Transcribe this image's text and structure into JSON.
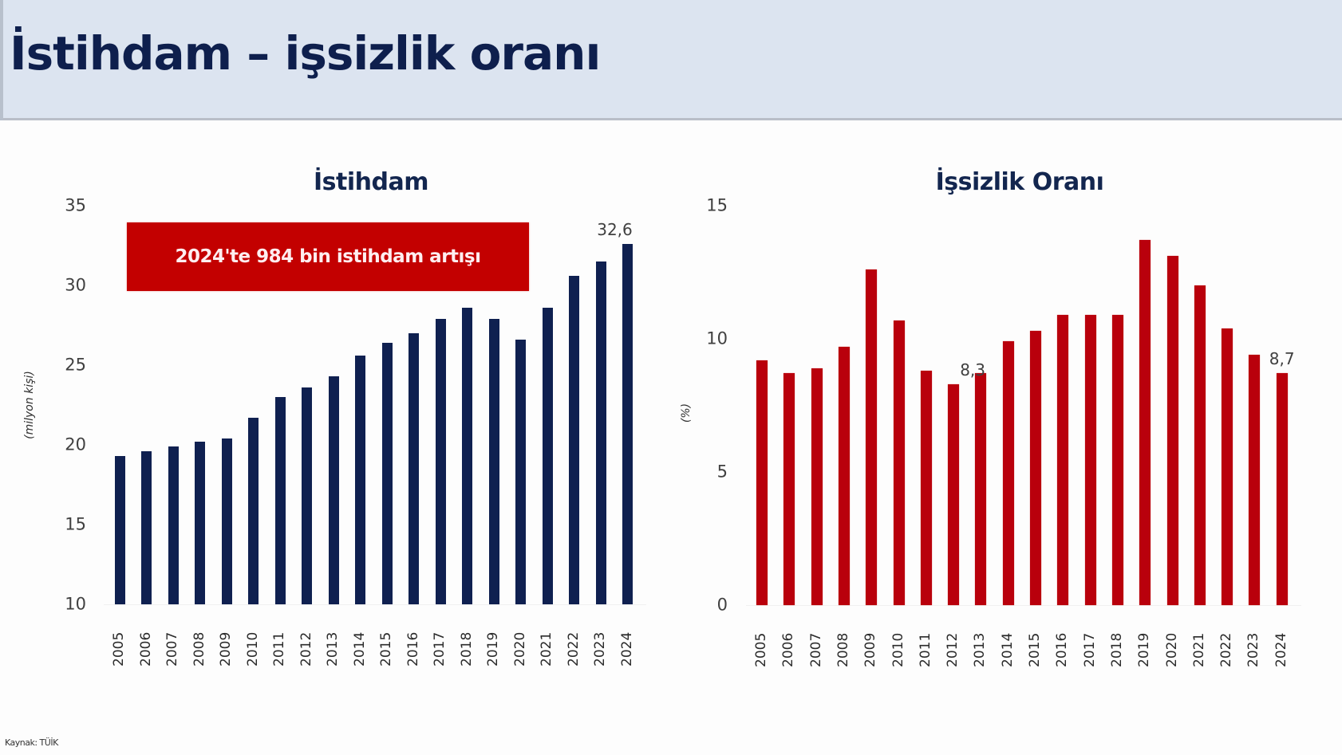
{
  "header": {
    "title": "İstihdam – işsizlik oranı"
  },
  "colors": {
    "header_bg": "#dce4f0",
    "title": "#0e1f4d",
    "employment_bar": "#0f2050",
    "unemployment_bar": "#b9000c",
    "banner": "#c30000"
  },
  "source": "Kaynak: TÜİK",
  "chart_data": [
    {
      "type": "bar",
      "title": "İstihdam",
      "xlabel": "",
      "ylabel": "(milyon kişi)",
      "ylim": [
        10,
        35
      ],
      "yticks": [
        "10",
        "15",
        "20",
        "25",
        "30",
        "35"
      ],
      "grid": false,
      "categories": [
        "2005",
        "2006",
        "2007",
        "2008",
        "2009",
        "2010",
        "2011",
        "2012",
        "2013",
        "2014",
        "2015",
        "2016",
        "2017",
        "2018",
        "2019",
        "2020",
        "2021",
        "2022",
        "2023",
        "2024"
      ],
      "values": [
        19.3,
        19.6,
        19.9,
        20.2,
        20.4,
        21.7,
        23.0,
        23.6,
        24.3,
        25.6,
        26.4,
        27.0,
        27.9,
        28.6,
        27.9,
        26.6,
        28.6,
        30.6,
        31.5,
        32.6
      ],
      "annotations": [
        {
          "category": "2024",
          "text": "32,6"
        },
        {
          "type": "banner",
          "text": "2024'te 984 bin istihdam artışı"
        }
      ]
    },
    {
      "type": "bar",
      "title": "İşsizlik Oranı",
      "xlabel": "",
      "ylabel": "(%)",
      "ylim": [
        0,
        15
      ],
      "yticks": [
        "0",
        "5",
        "10",
        "15"
      ],
      "grid": false,
      "categories": [
        "2005",
        "2006",
        "2007",
        "2008",
        "2009",
        "2010",
        "2011",
        "2012",
        "2013",
        "2014",
        "2015",
        "2016",
        "2017",
        "2018",
        "2019",
        "2020",
        "2021",
        "2022",
        "2023",
        "2024"
      ],
      "values": [
        9.2,
        8.7,
        8.9,
        9.7,
        12.6,
        10.7,
        8.8,
        8.3,
        8.7,
        9.9,
        10.3,
        10.9,
        10.9,
        10.9,
        13.7,
        13.1,
        12.0,
        10.4,
        9.4,
        8.7
      ],
      "annotations": [
        {
          "category": "2012",
          "text": "8,3"
        },
        {
          "category": "2024",
          "text": "8,7"
        }
      ]
    }
  ]
}
